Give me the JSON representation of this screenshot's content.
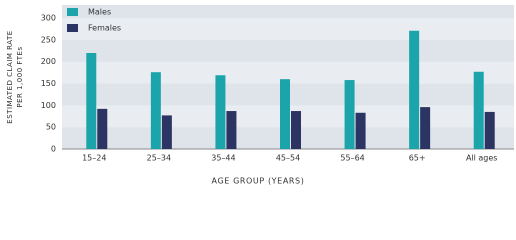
{
  "chart_data": {
    "type": "bar",
    "ylabel": [
      "ESTIMATED CLAIM RATE",
      "PER 1,000 FTEs"
    ],
    "xlabel": "AGE GROUP (YEARS)",
    "categories": [
      "15–24",
      "25–34",
      "35–44",
      "45–54",
      "55–64",
      "65+",
      "All ages"
    ],
    "series": [
      {
        "name": "Males",
        "color": "#1ba5aa",
        "values": [
          220,
          176,
          169,
          160,
          158,
          271,
          177
        ]
      },
      {
        "name": "Females",
        "color": "#2b3462",
        "values": [
          92,
          77,
          87,
          87,
          83,
          96,
          85
        ]
      }
    ],
    "ylim": [
      0,
      330
    ],
    "yticks": [
      0,
      50,
      100,
      150,
      200,
      250,
      300
    ],
    "legend": "top-left"
  }
}
